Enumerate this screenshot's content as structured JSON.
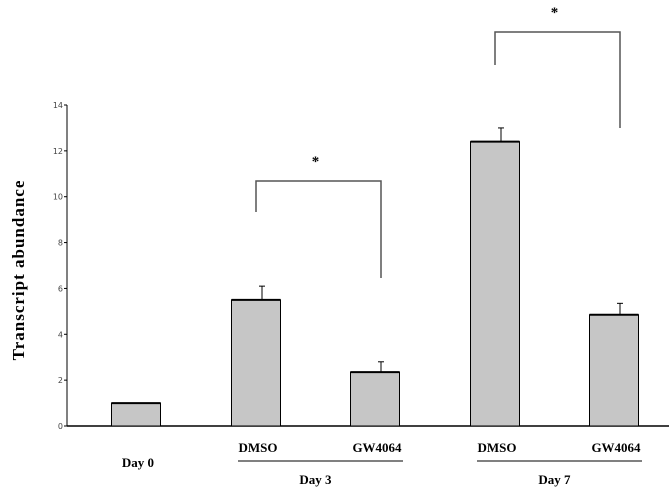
{
  "chart_data": {
    "type": "bar",
    "ylabel": "Transcript abundance",
    "xlabel": "",
    "title": "",
    "ylim": [
      0,
      14
    ],
    "yticks": [
      0,
      2,
      4,
      6,
      8,
      10,
      12,
      14
    ],
    "grid": false,
    "bars": [
      {
        "label": "Day 0",
        "value": 1.0,
        "error": 0.0
      },
      {
        "label": "DMSO",
        "value": 5.5,
        "error": 0.6
      },
      {
        "label": "GW4064",
        "value": 2.35,
        "error": 0.45
      },
      {
        "label": "DMSO",
        "value": 12.4,
        "error": 0.6
      },
      {
        "label": "GW4064",
        "value": 4.85,
        "error": 0.5
      }
    ],
    "groups": [
      {
        "label": "Day 3",
        "bars": [
          1,
          2
        ]
      },
      {
        "label": "Day 7",
        "bars": [
          3,
          4
        ]
      }
    ],
    "significance": [
      {
        "label": "*",
        "bars": [
          1,
          2
        ]
      },
      {
        "label": "*",
        "bars": [
          3,
          4
        ]
      }
    ],
    "colors": {
      "bar_fill": "#c6c6c6",
      "bar_stroke": "#000000"
    }
  }
}
